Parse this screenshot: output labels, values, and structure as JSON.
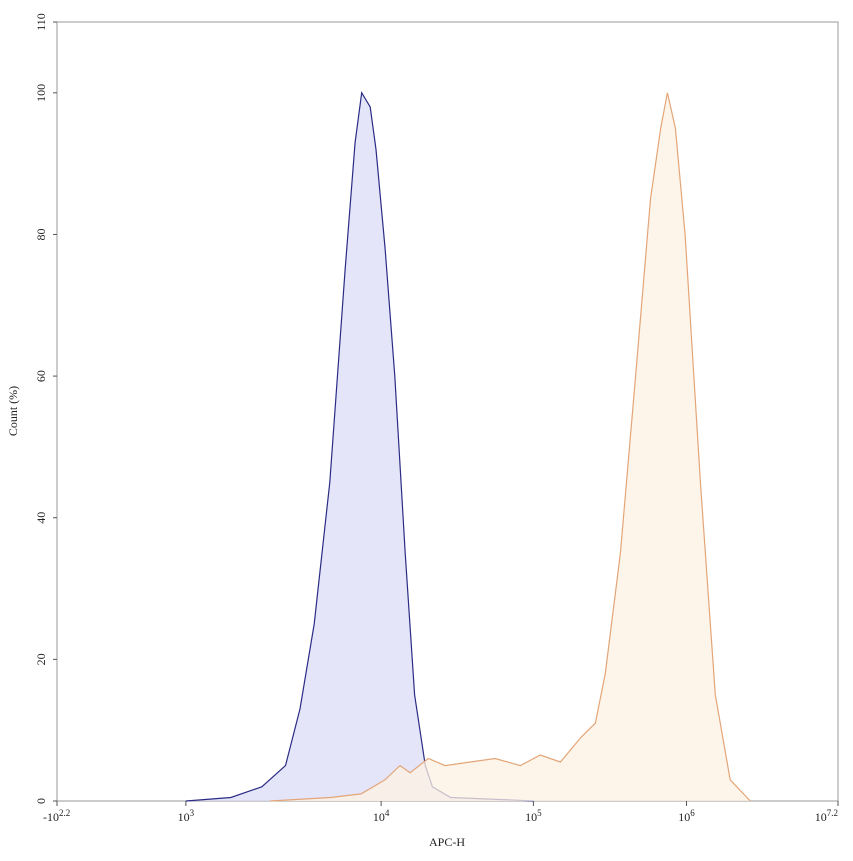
{
  "chart_data": {
    "type": "histogram-overlay",
    "xlabel": "APC-H",
    "ylabel": "Count (%)",
    "xscale": "log",
    "xlim": [
      -158.5,
      15848932
    ],
    "ylim": [
      0,
      110
    ],
    "xticks": [
      {
        "value": -158.5,
        "label": "-10",
        "exponent": "2.2"
      },
      {
        "value": 1000,
        "label": "10",
        "exponent": "3"
      },
      {
        "value": 10000,
        "label": "10",
        "exponent": "4"
      },
      {
        "value": 100000,
        "label": "10",
        "exponent": "5"
      },
      {
        "value": 1000000,
        "label": "10",
        "exponent": "6"
      },
      {
        "value": 15848932,
        "label": "10",
        "exponent": "7.2"
      }
    ],
    "yticks": [
      0,
      20,
      40,
      60,
      80,
      100,
      110
    ],
    "series": [
      {
        "color": "#2b2b85",
        "fill": "#dcdcf8",
        "x": [
          1000,
          1700,
          2450,
          3240,
          3840,
          4540,
          5460,
          6540,
          7360,
          7950,
          8790,
          9420,
          10620,
          12300,
          14400,
          16600,
          19500,
          21700,
          28600,
          81000,
          100000
        ],
        "values": [
          0,
          0.5,
          2,
          5,
          13,
          25,
          45,
          75,
          93,
          100,
          98,
          92,
          78,
          60,
          35,
          15,
          5,
          2,
          0.5,
          0.1,
          0
        ]
      },
      {
        "color": "#e3a578",
        "fill": "#fdf1e3",
        "x": [
          2700,
          5500,
          7900,
          10600,
          13300,
          15500,
          20400,
          26300,
          38500,
          56000,
          82000,
          111000,
          150000,
          205000,
          254000,
          295000,
          370000,
          465000,
          582000,
          678000,
          751000,
          846000,
          980000,
          1290000,
          1690000,
          2220000,
          3200000
        ],
        "values": [
          0,
          0.5,
          1,
          3,
          5,
          4,
          6,
          5,
          5.5,
          6,
          5,
          6.5,
          5.5,
          9,
          11,
          18,
          35,
          60,
          85,
          95,
          100,
          95,
          80,
          45,
          15,
          3,
          0
        ]
      }
    ]
  }
}
